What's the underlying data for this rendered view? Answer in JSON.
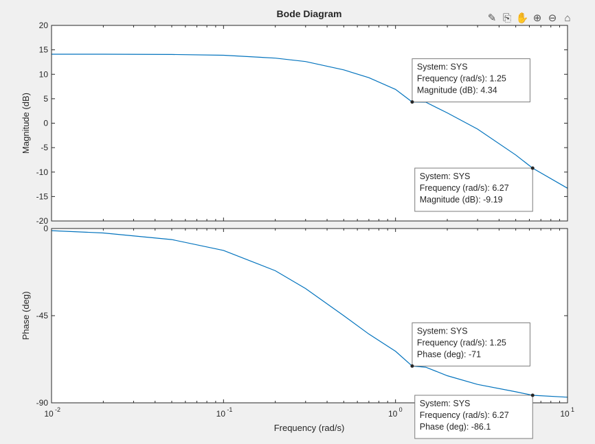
{
  "toolbar": {
    "items": [
      {
        "name": "data-tips-icon",
        "glyph": "✎"
      },
      {
        "name": "export-icon",
        "glyph": "⎘"
      },
      {
        "name": "pan-icon",
        "glyph": "✋"
      },
      {
        "name": "zoom-in-icon",
        "glyph": "⊕"
      },
      {
        "name": "zoom-out-icon",
        "glyph": "⊖"
      },
      {
        "name": "home-icon",
        "glyph": "⌂"
      }
    ]
  },
  "chart_data": {
    "type": "line",
    "title": "Bode Diagram",
    "xlabel": "Frequency  (rad/s)",
    "x_scale": "log",
    "xlim": [
      0.01,
      10
    ],
    "x_tick_labels": [
      {
        "value": 0.01,
        "base": "10",
        "exp": "-2"
      },
      {
        "value": 0.1,
        "base": "10",
        "exp": "-1"
      },
      {
        "value": 1,
        "base": "10",
        "exp": "0"
      },
      {
        "value": 10,
        "base": "10",
        "exp": "1"
      }
    ],
    "line_color": "#0072bd",
    "grid": false,
    "panels": [
      {
        "id": "magnitude",
        "ylabel": "Magnitude (dB)",
        "ylim": [
          -20,
          20
        ],
        "yticks": [
          20,
          15,
          10,
          5,
          0,
          -5,
          -10,
          -15,
          -20
        ],
        "series": {
          "x": [
            0.01,
            0.02,
            0.05,
            0.1,
            0.2,
            0.3,
            0.5,
            0.7,
            1.0,
            1.25,
            1.5,
            2.0,
            3.0,
            5.0,
            6.27,
            10.0
          ],
          "y": [
            14.1,
            14.1,
            14.05,
            13.9,
            13.3,
            12.6,
            10.9,
            9.3,
            6.9,
            4.34,
            4.3,
            2.1,
            -1.2,
            -6.5,
            -9.19,
            -13.3
          ]
        },
        "datatips": [
          {
            "x": 1.25,
            "y": 4.34,
            "lines": [
              "System: SYS",
              "Frequency (rad/s): 1.25",
              "Magnitude (dB): 4.34"
            ],
            "placement": "above-right"
          },
          {
            "x": 6.27,
            "y": -9.19,
            "lines": [
              "System: SYS",
              "Frequency (rad/s): 6.27",
              "Magnitude (dB): -9.19"
            ],
            "placement": "below-left"
          }
        ]
      },
      {
        "id": "phase",
        "ylabel": "Phase (deg)",
        "ylim": [
          -90,
          0
        ],
        "yticks": [
          0,
          -45,
          -90
        ],
        "series": {
          "x": [
            0.01,
            0.02,
            0.05,
            0.1,
            0.2,
            0.3,
            0.5,
            0.7,
            1.0,
            1.25,
            1.5,
            2.0,
            3.0,
            5.0,
            6.27,
            10.0
          ],
          "y": [
            -1.1,
            -2.3,
            -5.7,
            -11.3,
            -21.8,
            -31.0,
            -45.0,
            -54.5,
            -63.4,
            -71,
            -71.6,
            -76.0,
            -80.5,
            -84.3,
            -86.1,
            -87.1
          ]
        },
        "datatips": [
          {
            "x": 1.25,
            "y": -71,
            "lines": [
              "System: SYS",
              "Frequency (rad/s): 1.25",
              "Phase (deg): -71"
            ],
            "placement": "above-right"
          },
          {
            "x": 6.27,
            "y": -86.1,
            "lines": [
              "System: SYS",
              "Frequency (rad/s): 6.27",
              "Phase (deg): -86.1"
            ],
            "placement": "below-left"
          }
        ]
      }
    ]
  }
}
